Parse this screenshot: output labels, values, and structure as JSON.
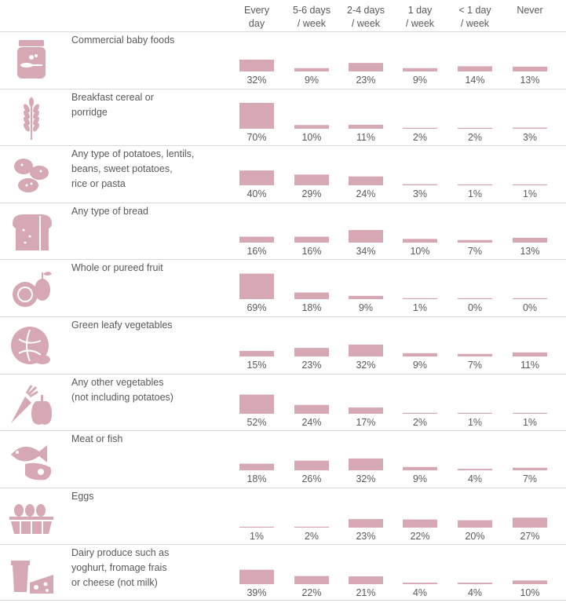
{
  "colors": {
    "bar": "#d5a8b3",
    "icon": "#d5a8b3",
    "text": "#595959",
    "rule": "#d9d9d9"
  },
  "chart_data": {
    "type": "table",
    "columns": [
      "Every\nday",
      "5-6 days\n/ week",
      "2-4 days\n/ week",
      "1 day\n/ week",
      "< 1 day\n/ week",
      "Never"
    ],
    "unit": "%",
    "rows": [
      {
        "icon": "baby-food-jar-icon",
        "label": "Commercial baby foods",
        "values": [
          32,
          9,
          23,
          9,
          14,
          13
        ]
      },
      {
        "icon": "wheat-icon",
        "label": "Breakfast cereal or porridge",
        "values": [
          70,
          10,
          11,
          2,
          2,
          3
        ]
      },
      {
        "icon": "potato-icon",
        "label": "Any type of potatoes, lentils, beans, sweet potatoes, rice or pasta",
        "values": [
          40,
          29,
          24,
          3,
          1,
          1
        ]
      },
      {
        "icon": "bread-icon",
        "label": "Any type of bread",
        "values": [
          16,
          16,
          34,
          10,
          7,
          13
        ]
      },
      {
        "icon": "fruit-icon",
        "label": "Whole or pureed fruit",
        "values": [
          69,
          18,
          9,
          1,
          0,
          0
        ]
      },
      {
        "icon": "cabbage-icon",
        "label": "Green leafy vegetables",
        "values": [
          15,
          23,
          32,
          9,
          7,
          11
        ]
      },
      {
        "icon": "carrot-pepper-icon",
        "label": "Any other vegetables (not including potatoes)",
        "values": [
          52,
          24,
          17,
          2,
          1,
          1
        ]
      },
      {
        "icon": "fish-meat-icon",
        "label": "Meat or fish",
        "values": [
          18,
          26,
          32,
          9,
          4,
          7
        ]
      },
      {
        "icon": "eggs-icon",
        "label": "Eggs",
        "values": [
          1,
          2,
          23,
          22,
          20,
          27
        ]
      },
      {
        "icon": "dairy-icon",
        "label": "Dairy produce such as yoghurt, fromage frais or cheese (not milk)",
        "values": [
          39,
          22,
          21,
          4,
          4,
          10
        ]
      }
    ]
  }
}
